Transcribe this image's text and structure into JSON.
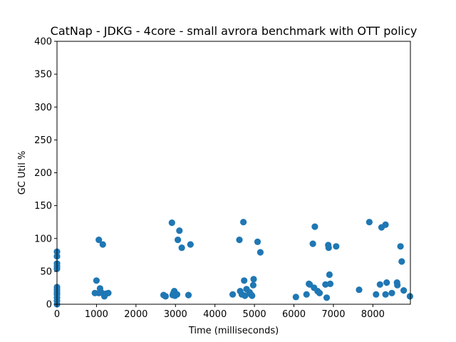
{
  "chart_data": {
    "type": "scatter",
    "title": "CatNap - JDKG - 4core -  small avrora benchmark with OTT policy",
    "xlabel": "Time (milliseconds)",
    "ylabel": "GC Util %",
    "xlim": [
      0,
      8950
    ],
    "ylim": [
      0,
      400
    ],
    "xticks": [
      0,
      1000,
      2000,
      3000,
      4000,
      5000,
      6000,
      7000,
      8000
    ],
    "yticks": [
      0,
      50,
      100,
      150,
      200,
      250,
      300,
      350,
      400
    ],
    "grid": false,
    "marker_color": "#1f77b4",
    "series": [
      {
        "points": [
          [
            0,
            80
          ],
          [
            0,
            73
          ],
          [
            0,
            62
          ],
          [
            0,
            58
          ],
          [
            0,
            54
          ],
          [
            0,
            26
          ],
          [
            0,
            22
          ],
          [
            0,
            18
          ],
          [
            0,
            15
          ],
          [
            0,
            10
          ],
          [
            0,
            5
          ],
          [
            0,
            0
          ],
          [
            960,
            17
          ],
          [
            1000,
            36
          ],
          [
            1060,
            98
          ],
          [
            1090,
            24
          ],
          [
            1120,
            18
          ],
          [
            1160,
            91
          ],
          [
            1190,
            15
          ],
          [
            1200,
            12
          ],
          [
            1240,
            16
          ],
          [
            1300,
            17
          ],
          [
            1060,
            17
          ],
          [
            2700,
            14
          ],
          [
            2750,
            12
          ],
          [
            2910,
            124
          ],
          [
            2930,
            14
          ],
          [
            2950,
            17
          ],
          [
            2970,
            20
          ],
          [
            2990,
            13
          ],
          [
            3040,
            15
          ],
          [
            3060,
            98
          ],
          [
            3100,
            112
          ],
          [
            3160,
            86
          ],
          [
            3330,
            14
          ],
          [
            3380,
            91
          ],
          [
            4450,
            15
          ],
          [
            4620,
            98
          ],
          [
            4640,
            20
          ],
          [
            4680,
            15
          ],
          [
            4720,
            125
          ],
          [
            4740,
            36
          ],
          [
            4760,
            13
          ],
          [
            4800,
            23
          ],
          [
            4880,
            18
          ],
          [
            4910,
            15
          ],
          [
            4940,
            13
          ],
          [
            4970,
            29
          ],
          [
            4980,
            38
          ],
          [
            5080,
            95
          ],
          [
            5150,
            79
          ],
          [
            6050,
            11
          ],
          [
            6320,
            15
          ],
          [
            6380,
            31
          ],
          [
            6400,
            30
          ],
          [
            6480,
            92
          ],
          [
            6510,
            25
          ],
          [
            6530,
            118
          ],
          [
            6600,
            20
          ],
          [
            6650,
            17
          ],
          [
            6800,
            30
          ],
          [
            6830,
            10
          ],
          [
            6870,
            90
          ],
          [
            6880,
            86
          ],
          [
            6900,
            45
          ],
          [
            6920,
            31
          ],
          [
            7070,
            88
          ],
          [
            7650,
            22
          ],
          [
            7910,
            125
          ],
          [
            8080,
            15
          ],
          [
            8180,
            30
          ],
          [
            8220,
            117
          ],
          [
            8320,
            121
          ],
          [
            8320,
            15
          ],
          [
            8350,
            33
          ],
          [
            8480,
            17
          ],
          [
            8610,
            33
          ],
          [
            8620,
            29
          ],
          [
            8700,
            88
          ],
          [
            8730,
            65
          ],
          [
            8780,
            21
          ],
          [
            8940,
            12
          ]
        ]
      }
    ]
  }
}
